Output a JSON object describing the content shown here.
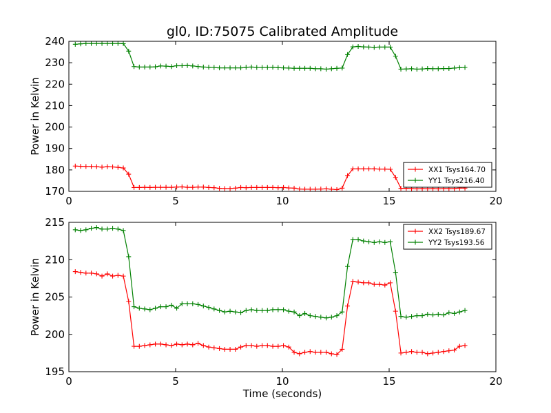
{
  "chart_data": [
    {
      "type": "line",
      "title": "gl0, ID:75075 Calibrated Amplitude",
      "xlabel": "",
      "ylabel": "Power in Kelvin",
      "xlim": [
        0,
        20
      ],
      "ylim": [
        170,
        240
      ],
      "xticks": [
        "0",
        "5",
        "10",
        "15",
        "20"
      ],
      "yticks": [
        "170",
        "180",
        "190",
        "200",
        "210",
        "220",
        "230",
        "240"
      ],
      "legend_position": "lower-right",
      "x": [
        0.3,
        0.55,
        0.8,
        1.05,
        1.3,
        1.55,
        1.8,
        2.05,
        2.3,
        2.55,
        2.8,
        3.05,
        3.3,
        3.55,
        3.8,
        4.05,
        4.3,
        4.55,
        4.8,
        5.05,
        5.3,
        5.55,
        5.8,
        6.05,
        6.3,
        6.55,
        6.8,
        7.05,
        7.3,
        7.55,
        7.8,
        8.05,
        8.3,
        8.55,
        8.8,
        9.05,
        9.3,
        9.55,
        9.8,
        10.05,
        10.3,
        10.55,
        10.8,
        11.05,
        11.3,
        11.55,
        11.8,
        12.05,
        12.3,
        12.55,
        12.8,
        13.05,
        13.3,
        13.55,
        13.8,
        14.05,
        14.3,
        14.55,
        14.8,
        15.05,
        15.3,
        15.55,
        15.8,
        16.05,
        16.3,
        16.55,
        16.8,
        17.05,
        17.3,
        17.55,
        17.8,
        18.05,
        18.3,
        18.55
      ],
      "series": [
        {
          "name": "XX1 Tsys164.70",
          "color": "#ff0000",
          "values": [
            181.8,
            181.7,
            181.6,
            181.6,
            181.5,
            181.3,
            181.5,
            181.4,
            181.2,
            180.9,
            178.0,
            171.8,
            171.8,
            171.9,
            171.8,
            171.9,
            171.9,
            171.9,
            171.9,
            172.0,
            172.1,
            171.9,
            171.9,
            172.0,
            172.0,
            171.8,
            171.7,
            171.4,
            171.3,
            171.3,
            171.5,
            171.8,
            171.7,
            171.8,
            171.8,
            171.8,
            171.8,
            171.8,
            171.7,
            171.8,
            171.6,
            171.5,
            171.1,
            171.0,
            171.0,
            171.0,
            171.1,
            171.2,
            171.0,
            170.8,
            171.5,
            177.3,
            180.5,
            180.5,
            180.5,
            180.5,
            180.5,
            180.4,
            180.4,
            180.3,
            176.5,
            171.4,
            171.4,
            171.3,
            171.2,
            171.3,
            171.2,
            171.3,
            171.2,
            171.3,
            171.3,
            171.3,
            171.5,
            171.5
          ]
        },
        {
          "name": "YY1 Tsys216.40",
          "color": "#008000",
          "values": [
            238.6,
            238.8,
            239.0,
            239.0,
            239.0,
            239.0,
            239.0,
            239.0,
            239.0,
            238.9,
            235.4,
            228.2,
            228.0,
            228.0,
            228.0,
            228.1,
            228.5,
            228.4,
            228.2,
            228.6,
            228.6,
            228.7,
            228.5,
            228.2,
            228.0,
            227.9,
            227.8,
            227.6,
            227.6,
            227.6,
            227.6,
            227.6,
            227.9,
            228.0,
            227.8,
            227.8,
            227.8,
            227.9,
            227.7,
            227.6,
            227.5,
            227.4,
            227.4,
            227.4,
            227.4,
            227.2,
            227.2,
            227.0,
            227.2,
            227.4,
            227.5,
            233.8,
            237.4,
            237.6,
            237.4,
            237.3,
            237.2,
            237.3,
            237.3,
            237.3,
            233.1,
            227.0,
            227.1,
            227.2,
            227.0,
            227.1,
            227.3,
            227.2,
            227.2,
            227.3,
            227.3,
            227.5,
            227.7,
            227.8
          ]
        }
      ]
    },
    {
      "type": "line",
      "title": "",
      "xlabel": "Time (seconds)",
      "ylabel": "Power in Kelvin",
      "xlim": [
        0,
        20
      ],
      "ylim": [
        195,
        215
      ],
      "xticks": [
        "0",
        "5",
        "10",
        "15",
        "20"
      ],
      "yticks": [
        "195",
        "200",
        "205",
        "210",
        "215"
      ],
      "legend_position": "upper-right",
      "x": [
        0.3,
        0.55,
        0.8,
        1.05,
        1.3,
        1.55,
        1.8,
        2.05,
        2.3,
        2.55,
        2.8,
        3.05,
        3.3,
        3.55,
        3.8,
        4.05,
        4.3,
        4.55,
        4.8,
        5.05,
        5.3,
        5.55,
        5.8,
        6.05,
        6.3,
        6.55,
        6.8,
        7.05,
        7.3,
        7.55,
        7.8,
        8.05,
        8.3,
        8.55,
        8.8,
        9.05,
        9.3,
        9.55,
        9.8,
        10.05,
        10.3,
        10.55,
        10.8,
        11.05,
        11.3,
        11.55,
        11.8,
        12.05,
        12.3,
        12.55,
        12.8,
        13.05,
        13.3,
        13.55,
        13.8,
        14.05,
        14.3,
        14.55,
        14.8,
        15.05,
        15.3,
        15.55,
        15.8,
        16.05,
        16.3,
        16.55,
        16.8,
        17.05,
        17.3,
        17.55,
        17.8,
        18.05,
        18.3,
        18.55
      ],
      "series": [
        {
          "name": "XX2 Tsys189.67",
          "color": "#ff0000",
          "values": [
            208.4,
            208.3,
            208.2,
            208.2,
            208.1,
            207.8,
            208.1,
            207.8,
            207.9,
            207.8,
            204.4,
            198.4,
            198.4,
            198.5,
            198.6,
            198.7,
            198.7,
            198.6,
            198.5,
            198.7,
            198.6,
            198.7,
            198.6,
            198.8,
            198.5,
            198.3,
            198.2,
            198.1,
            198.0,
            198.0,
            198.0,
            198.3,
            198.5,
            198.5,
            198.4,
            198.5,
            198.5,
            198.4,
            198.4,
            198.5,
            198.3,
            197.6,
            197.4,
            197.6,
            197.7,
            197.6,
            197.6,
            197.6,
            197.4,
            197.3,
            198.0,
            203.8,
            207.1,
            207.0,
            206.9,
            206.9,
            206.7,
            206.7,
            206.6,
            206.9,
            203.1,
            197.5,
            197.6,
            197.7,
            197.6,
            197.6,
            197.4,
            197.5,
            197.6,
            197.7,
            197.8,
            197.9,
            198.4,
            198.5
          ]
        },
        {
          "name": "YY2 Tsys193.56",
          "color": "#008000",
          "values": [
            214.0,
            213.9,
            214.0,
            214.2,
            214.3,
            214.1,
            214.1,
            214.2,
            214.1,
            213.9,
            210.4,
            203.7,
            203.5,
            203.4,
            203.3,
            203.5,
            203.7,
            203.7,
            203.9,
            203.5,
            204.1,
            204.1,
            204.1,
            204.0,
            203.8,
            203.6,
            203.4,
            203.2,
            203.0,
            203.1,
            203.0,
            202.9,
            203.2,
            203.3,
            203.2,
            203.2,
            203.2,
            203.3,
            203.3,
            203.3,
            203.1,
            203.0,
            202.5,
            202.8,
            202.5,
            202.4,
            202.3,
            202.2,
            202.3,
            202.5,
            203.0,
            209.1,
            212.7,
            212.7,
            212.5,
            212.4,
            212.3,
            212.4,
            212.3,
            212.4,
            208.3,
            202.4,
            202.3,
            202.4,
            202.5,
            202.5,
            202.7,
            202.6,
            202.7,
            202.6,
            202.9,
            202.8,
            203.0,
            203.2
          ]
        }
      ]
    }
  ]
}
